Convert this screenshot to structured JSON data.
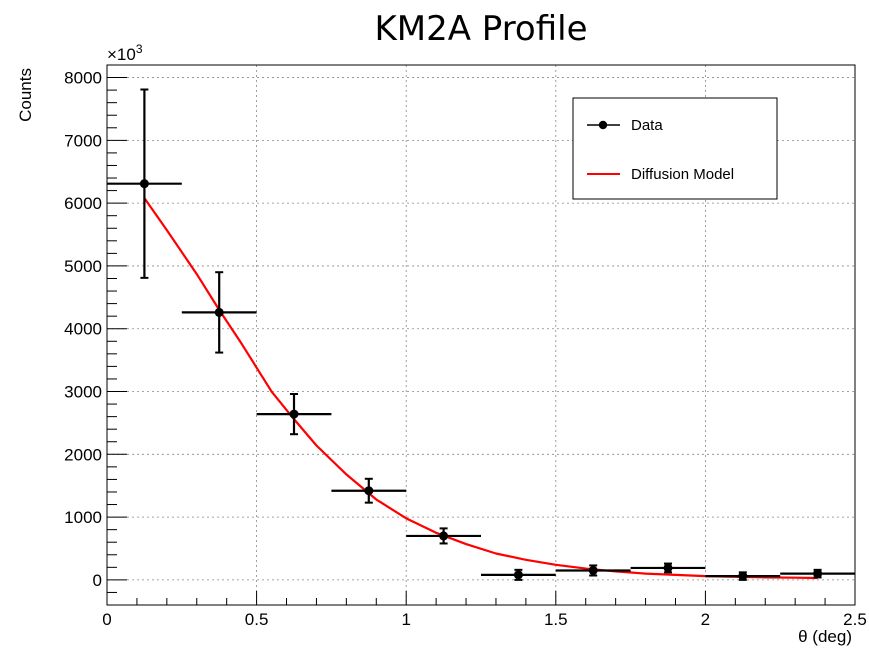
{
  "chart_data": {
    "type": "scatter",
    "title": "KM2A Profile",
    "xlabel": "θ (deg)",
    "ylabel": "Counts",
    "y_multiplier": "×10",
    "y_multiplier_exp": "3",
    "xlim": [
      0,
      2.5
    ],
    "ylim": [
      -400,
      8200
    ],
    "x_ticks": [
      {
        "value": 0,
        "label": "0"
      },
      {
        "value": 0.5,
        "label": "0.5"
      },
      {
        "value": 1,
        "label": "1"
      },
      {
        "value": 1.5,
        "label": "1.5"
      },
      {
        "value": 2,
        "label": "2"
      },
      {
        "value": 2.5,
        "label": "2.5"
      }
    ],
    "y_ticks": [
      {
        "value": 0,
        "label": "0"
      },
      {
        "value": 1000,
        "label": "1000"
      },
      {
        "value": 2000,
        "label": "2000"
      },
      {
        "value": 3000,
        "label": "3000"
      },
      {
        "value": 4000,
        "label": "4000"
      },
      {
        "value": 5000,
        "label": "5000"
      },
      {
        "value": 6000,
        "label": "6000"
      },
      {
        "value": 7000,
        "label": "7000"
      },
      {
        "value": 8000,
        "label": "8000"
      }
    ],
    "grid": true,
    "legend_position": "top-right",
    "series": [
      {
        "name": "Data",
        "kind": "errorbar",
        "color": "#000000",
        "points": [
          {
            "x": 0.125,
            "xerr": 0.125,
            "y": 6310,
            "yerr": 1500
          },
          {
            "x": 0.375,
            "xerr": 0.125,
            "y": 4260,
            "yerr": 640
          },
          {
            "x": 0.625,
            "xerr": 0.125,
            "y": 2640,
            "yerr": 320
          },
          {
            "x": 0.875,
            "xerr": 0.125,
            "y": 1420,
            "yerr": 190
          },
          {
            "x": 1.125,
            "xerr": 0.125,
            "y": 700,
            "yerr": 120
          },
          {
            "x": 1.375,
            "xerr": 0.125,
            "y": 80,
            "yerr": 80
          },
          {
            "x": 1.625,
            "xerr": 0.125,
            "y": 150,
            "yerr": 80
          },
          {
            "x": 1.875,
            "xerr": 0.125,
            "y": 190,
            "yerr": 70
          },
          {
            "x": 2.125,
            "xerr": 0.125,
            "y": 60,
            "yerr": 60
          },
          {
            "x": 2.375,
            "xerr": 0.125,
            "y": 100,
            "yerr": 60
          }
        ]
      },
      {
        "name": "Diffusion Model",
        "kind": "line",
        "color": "#ff0000",
        "x": [
          0.125,
          0.2,
          0.3,
          0.375,
          0.45,
          0.5,
          0.55,
          0.625,
          0.7,
          0.8,
          0.9,
          1.0,
          1.1,
          1.2,
          1.3,
          1.4,
          1.5,
          1.6,
          1.7,
          1.8,
          1.9,
          2.0,
          2.1,
          2.2,
          2.3,
          2.375
        ],
        "y": [
          6080,
          5570,
          4870,
          4300,
          3760,
          3380,
          3000,
          2560,
          2140,
          1680,
          1280,
          980,
          750,
          570,
          420,
          320,
          240,
          180,
          135,
          100,
          80,
          60,
          50,
          40,
          35,
          30
        ]
      }
    ]
  }
}
